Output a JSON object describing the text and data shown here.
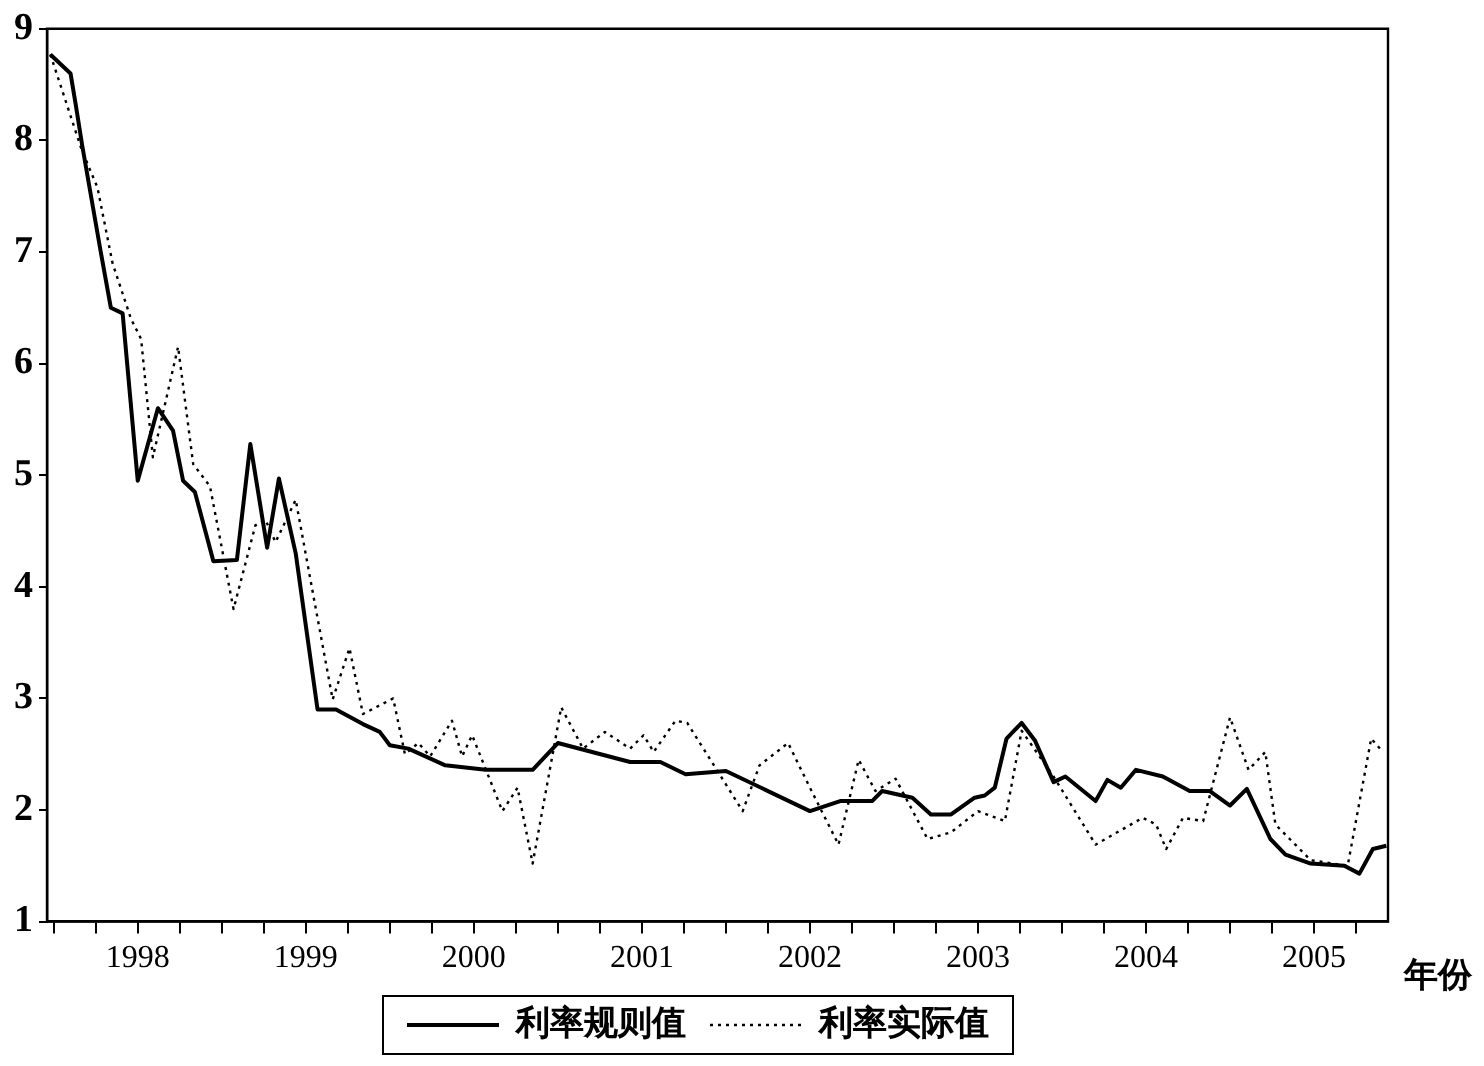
{
  "chart_data": {
    "type": "line",
    "xlabel": "年份",
    "xlim": [
      1997.46,
      2005.44
    ],
    "ylim": [
      1,
      9
    ],
    "yticks": [
      1,
      2,
      3,
      4,
      5,
      6,
      7,
      8,
      9
    ],
    "xticks": [
      {
        "value": 1997.5,
        "label": null
      },
      {
        "value": 1997.75,
        "label": null
      },
      1998,
      {
        "value": 1998.25,
        "label": null
      },
      {
        "value": 1998.5,
        "label": null
      },
      {
        "value": 1998.75,
        "label": null
      },
      1999,
      {
        "value": 1999.25,
        "label": null
      },
      {
        "value": 1999.5,
        "label": null
      },
      {
        "value": 1999.75,
        "label": null
      },
      2000,
      {
        "value": 2000.25,
        "label": null
      },
      {
        "value": 2000.5,
        "label": null
      },
      {
        "value": 2000.75,
        "label": null
      },
      2001,
      {
        "value": 2001.25,
        "label": null
      },
      {
        "value": 2001.5,
        "label": null
      },
      {
        "value": 2001.75,
        "label": null
      },
      2002,
      {
        "value": 2002.25,
        "label": null
      },
      {
        "value": 2002.5,
        "label": null
      },
      {
        "value": 2002.75,
        "label": null
      },
      2003,
      {
        "value": 2003.25,
        "label": null
      },
      {
        "value": 2003.5,
        "label": null
      },
      {
        "value": 2003.75,
        "label": null
      },
      2004,
      {
        "value": 2004.25,
        "label": null
      },
      {
        "value": 2004.5,
        "label": null
      },
      {
        "value": 2004.75,
        "label": null
      },
      2005,
      {
        "value": 2005.25,
        "label": null
      }
    ],
    "grid": false,
    "legend": "bottom",
    "marker": "none",
    "series": [
      {
        "name": "利率规则值",
        "color": "#000000",
        "line_style": "solid",
        "x": [
          1997.48,
          1997.6,
          1997.63,
          1997.67,
          1997.78,
          1997.84,
          1997.91,
          1998,
          1998.12,
          1998.21,
          1998.27,
          1998.34,
          1998.45,
          1998.59,
          1998.67,
          1998.77,
          1998.84,
          1998.94,
          1999.07,
          1999.18,
          1999.34,
          1999.44,
          1999.5,
          1999.61,
          1999.83,
          2000.07,
          2000.35,
          2000.5,
          2000.93,
          2001.11,
          2001.26,
          2001.5,
          2002,
          2002.18,
          2002.37,
          2002.43,
          2002.61,
          2002.72,
          2002.84,
          2002.98,
          2003.04,
          2003.1,
          2003.17,
          2003.26,
          2003.34,
          2003.45,
          2003.52,
          2003.7,
          2003.77,
          2003.85,
          2003.94,
          2004.1,
          2004.26,
          2004.38,
          2004.5,
          2004.6,
          2004.74,
          2004.83,
          2004.98,
          2005.18,
          2005.27,
          2005.35,
          2005.43
        ],
        "values": [
          8.77,
          8.6,
          8.33,
          7.95,
          7.0,
          6.5,
          6.45,
          4.95,
          5.6,
          5.4,
          4.95,
          4.85,
          4.23,
          4.24,
          5.28,
          4.35,
          4.97,
          4.3,
          2.9,
          2.9,
          2.77,
          2.7,
          2.58,
          2.55,
          2.4,
          2.36,
          2.36,
          2.6,
          2.43,
          2.43,
          2.32,
          2.35,
          1.99,
          2.08,
          2.08,
          2.17,
          2.11,
          1.96,
          1.96,
          2.11,
          2.13,
          2.2,
          2.64,
          2.78,
          2.62,
          2.25,
          2.3,
          2.08,
          2.27,
          2.2,
          2.36,
          2.3,
          2.17,
          2.17,
          2.04,
          2.19,
          1.74,
          1.6,
          1.52,
          1.5,
          1.43,
          1.65,
          1.68
        ]
      },
      {
        "name": "利率实际值",
        "color": "#000000",
        "line_style": "dotted",
        "x": [
          1997.48,
          1997.67,
          1997.76,
          1997.85,
          1997.96,
          1998.02,
          1998.09,
          1998.24,
          1998.33,
          1998.43,
          1998.57,
          1998.7,
          1998.76,
          1998.82,
          1998.94,
          1999.06,
          1999.16,
          1999.26,
          1999.34,
          1999.52,
          1999.59,
          1999.67,
          1999.74,
          1999.87,
          1999.93,
          1999.99,
          2000.17,
          2000.26,
          2000.35,
          2000.52,
          2000.65,
          2000.78,
          2000.93,
          2001.01,
          2001.07,
          2001.2,
          2001.27,
          2001.6,
          2001.7,
          2001.87,
          2002,
          2002.17,
          2002.29,
          2002.39,
          2002.51,
          2002.7,
          2002.84,
          2003,
          2003.16,
          2003.26,
          2003.45,
          2003.7,
          2003.98,
          2004.06,
          2004.12,
          2004.22,
          2004.34,
          2004.5,
          2004.61,
          2004.71,
          2004.77,
          2004.98,
          2005.2,
          2005.34,
          2005.41
        ],
        "values": [
          8.77,
          7.9,
          7.58,
          6.9,
          6.4,
          6.22,
          5.16,
          6.15,
          5.1,
          4.9,
          3.8,
          4.55,
          4.6,
          4.4,
          4.78,
          3.8,
          2.99,
          3.45,
          2.86,
          3.0,
          2.5,
          2.6,
          2.48,
          2.8,
          2.48,
          2.67,
          1.99,
          2.2,
          1.52,
          2.92,
          2.55,
          2.7,
          2.55,
          2.67,
          2.52,
          2.8,
          2.78,
          1.99,
          2.4,
          2.6,
          2.2,
          1.69,
          2.45,
          2.17,
          2.28,
          1.74,
          1.8,
          1.99,
          1.9,
          2.71,
          2.3,
          1.69,
          1.93,
          1.87,
          1.65,
          1.93,
          1.9,
          2.83,
          2.36,
          2.52,
          1.87,
          1.55,
          1.5,
          2.64,
          2.52
        ]
      }
    ]
  }
}
